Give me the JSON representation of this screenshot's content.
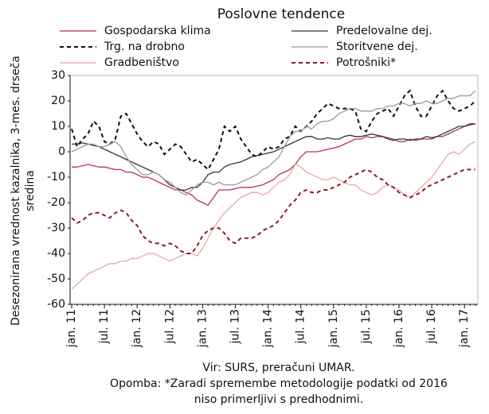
{
  "chart_data": {
    "type": "line",
    "title": "Poslovne tendence",
    "ylabel": [
      "Desezonirana vrednost kazalnika, 3-mes. drseča",
      "sredina"
    ],
    "notes": [
      "Vir: SURS, preračuni UMAR.",
      "Opomba: *Zaradi spremembe metodologije podatki od 2016",
      "niso primerljivi s predhodnimi."
    ],
    "categories": [
      "jan. 11",
      null,
      null,
      null,
      null,
      null,
      "jul. 11",
      null,
      null,
      null,
      null,
      null,
      "jan. 12",
      null,
      null,
      null,
      null,
      null,
      "jul. 12",
      null,
      null,
      null,
      null,
      null,
      "jan. 13",
      null,
      null,
      null,
      null,
      null,
      "jul. 13",
      null,
      null,
      null,
      null,
      null,
      "jan. 14",
      null,
      null,
      null,
      null,
      null,
      "jul. 14",
      null,
      null,
      null,
      null,
      null,
      "jan. 15",
      null,
      null,
      null,
      null,
      null,
      "jul. 15",
      null,
      null,
      null,
      null,
      null,
      "jan. 16",
      null,
      null,
      null,
      null,
      null,
      "jul. 16",
      null,
      null,
      null,
      null,
      null,
      "jan. 17",
      null,
      null
    ],
    "ylim": [
      -60,
      30
    ],
    "yticks": [
      -60,
      -50,
      -40,
      -30,
      -20,
      -10,
      0,
      10,
      20,
      30
    ],
    "series": [
      {
        "name": "Gospodarska klima",
        "color": "#b03550",
        "dash": false,
        "values": [
          -6,
          -6,
          -5.5,
          -5,
          -5.5,
          -6,
          -6,
          -6.5,
          -7,
          -7,
          -8,
          -8,
          -9,
          -10,
          -10,
          -11,
          -12,
          -13,
          -14,
          -15,
          -15,
          -16,
          -17,
          -19,
          -20,
          -21,
          -18,
          -15,
          -15,
          -15,
          -14.5,
          -14,
          -14,
          -14,
          -13.5,
          -13,
          -12,
          -11,
          -9,
          -8,
          -7,
          -5,
          -2,
          0,
          0,
          0,
          0.5,
          1,
          1.5,
          2,
          3,
          4,
          5,
          5,
          6,
          5.5,
          6,
          6,
          5.5,
          5,
          4,
          4,
          5,
          4.5,
          5,
          5,
          5,
          6,
          6,
          7,
          8,
          9,
          10,
          10.5,
          11
        ]
      },
      {
        "name": "Predelovalne dej.",
        "color": "#333333",
        "dash": false,
        "values": [
          3,
          3,
          3.5,
          3,
          2.5,
          2,
          1,
          0,
          -1,
          -2,
          -3,
          -4,
          -5,
          -6,
          -7,
          -8,
          -9,
          -11,
          -13,
          -14,
          -15,
          -15,
          -14,
          -14,
          -12,
          -9,
          -8,
          -8,
          -6,
          -5,
          -4.5,
          -4,
          -3,
          -2,
          -1.5,
          -1,
          -0.5,
          0,
          1,
          2,
          3,
          4,
          5,
          6,
          6,
          5,
          5,
          5.5,
          5,
          5,
          6,
          6.5,
          6,
          6,
          6.5,
          7,
          6.5,
          6,
          5,
          4.5,
          5,
          5,
          4.5,
          5,
          5,
          6,
          5.5,
          6,
          7,
          8,
          9,
          10,
          10,
          11,
          11
        ]
      },
      {
        "name": "Trg. na drobno",
        "color": "#111111",
        "dash": true,
        "values": [
          9,
          2,
          5,
          7,
          12,
          10,
          4,
          3,
          5,
          14,
          15,
          11,
          7,
          4,
          2,
          4,
          3,
          -1,
          1,
          3,
          2,
          -1,
          -4,
          -3,
          -5,
          -7,
          -3,
          1,
          10,
          8,
          10,
          5,
          2,
          -1,
          -2,
          0,
          2,
          1,
          2,
          5,
          6,
          10,
          8,
          10,
          12,
          15,
          17,
          19,
          18,
          17,
          17,
          17,
          16,
          9,
          8,
          12,
          15,
          16,
          17,
          14,
          18,
          22,
          24,
          18,
          14,
          14,
          18,
          22,
          24,
          20,
          17,
          16,
          17,
          18,
          20
        ]
      },
      {
        "name": "Storitvene dej.",
        "color": "#9a9a9a",
        "dash": false,
        "values": [
          0,
          1,
          2,
          3,
          3,
          2,
          2,
          3,
          4,
          2,
          -2,
          -5,
          -7,
          -9,
          -9,
          -8,
          -9,
          -11,
          -12,
          -14,
          -16,
          -17,
          -15,
          -13,
          -12,
          -12,
          -13,
          -12,
          -13,
          -13,
          -13,
          -12,
          -11,
          -10,
          -9,
          -7,
          -6,
          -4,
          -2,
          2,
          6,
          8,
          8,
          10,
          9,
          11,
          12,
          12,
          13,
          15,
          16,
          17,
          17,
          16,
          16,
          16,
          17,
          17,
          18,
          18,
          19,
          19,
          18,
          19,
          19,
          20,
          19,
          19,
          20,
          21,
          21,
          22,
          22,
          22,
          24
        ]
      },
      {
        "name": "Gradbeništvo",
        "color": "#e8a8a8",
        "dash": false,
        "values": [
          -54,
          -52,
          -50,
          -48,
          -47,
          -46,
          -45,
          -44,
          -44,
          -43,
          -43,
          -42,
          -42,
          -41,
          -40,
          -40,
          -41,
          -42,
          -43,
          -42,
          -41,
          -40,
          -40,
          -41,
          -38,
          -34,
          -30,
          -27,
          -24,
          -22,
          -20,
          -18,
          -17,
          -16,
          -16,
          -17,
          -16,
          -14,
          -12,
          -11,
          -9,
          -5,
          -6,
          -8,
          -9,
          -10,
          -11,
          -11,
          -10,
          -11,
          -12,
          -13,
          -13,
          -15,
          -16,
          -17,
          -16,
          -14,
          -13,
          -14,
          -15,
          -17,
          -18,
          -16,
          -14,
          -12,
          -10,
          -7,
          -4,
          -1,
          0,
          -1,
          1,
          3,
          4
        ]
      },
      {
        "name": "Potrošniki*",
        "color": "#8b1a2a",
        "dash": true,
        "values": [
          -26,
          -28,
          -27,
          -25,
          -24,
          -24,
          -25,
          -26,
          -24,
          -23,
          -24,
          -27,
          -29,
          -33,
          -35,
          -36,
          -36,
          -37,
          -36,
          -37,
          -39,
          -40,
          -40,
          -37,
          -33,
          -31,
          -30,
          -30,
          -32,
          -35,
          -36,
          -34,
          -34,
          -34,
          -33,
          -31,
          -30,
          -29,
          -27,
          -24,
          -21,
          -19,
          -16,
          -15,
          -16,
          -16,
          -15,
          -15,
          -14,
          -13,
          -12,
          -10,
          -9,
          -8,
          -7,
          -8,
          -10,
          -11,
          -13,
          -14,
          -16,
          -17,
          -18,
          -17,
          -16,
          -14,
          -13,
          -12,
          -11,
          -10,
          -9,
          -8,
          -7,
          -7,
          -7
        ]
      }
    ]
  }
}
